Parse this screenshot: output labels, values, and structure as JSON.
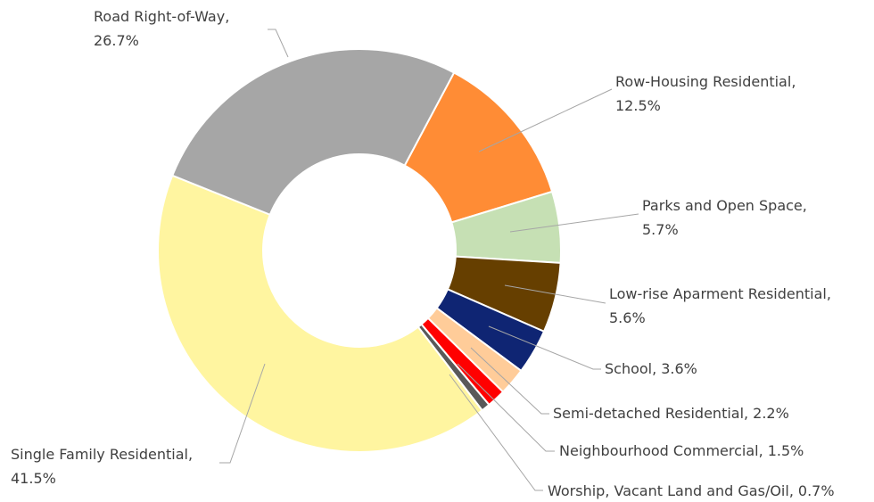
{
  "chart_data": {
    "type": "donut",
    "categories": [
      "Row-Housing Residential",
      "Parks and Open Space",
      "Low-rise Aparment Residential",
      "School",
      "Semi-detached Residential",
      "Neighbourhood Commercial",
      "Worship, Vacant Land and Gas/Oil",
      "Single Family Residential",
      "Road Right-of-Way"
    ],
    "values": [
      12.5,
      5.7,
      5.6,
      3.6,
      2.2,
      1.5,
      0.7,
      41.5,
      26.7
    ],
    "value_labels": [
      "12.5%",
      "5.7%",
      "5.6%",
      "3.6%",
      "2.2%",
      "1.5%",
      "0.7%",
      "41.5%",
      "26.7%"
    ],
    "label_separator": ",",
    "colors": [
      "#ff8c35",
      "#c6e0b4",
      "#663f00",
      "#0f2573",
      "#ffcc99",
      "#ff0000",
      "#595959",
      "#fff5a0",
      "#a6a6a6"
    ]
  }
}
